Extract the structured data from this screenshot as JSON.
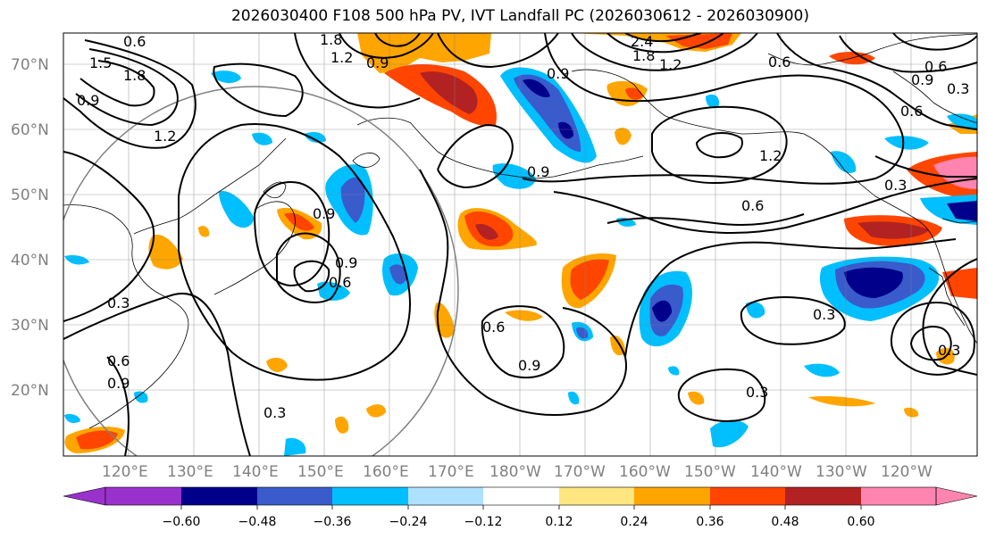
{
  "title": "2026030400 F108 500 hPa PV, IVT Landfall PC (2026030612 - 2026030900)",
  "map": {
    "lat_labels": [
      "70°N",
      "60°N",
      "50°N",
      "40°N",
      "30°N",
      "20°N"
    ],
    "lon_labels": [
      "120°E",
      "130°E",
      "140°E",
      "150°E",
      "160°E",
      "170°E",
      "180°W",
      "170°W",
      "160°W",
      "150°W",
      "140°W",
      "130°W",
      "120°W"
    ],
    "contour_labels": [
      "0.6",
      "1.5",
      "1.8",
      "0.9",
      "1.2",
      "1.8",
      "1.2",
      "0.9",
      "2.4",
      "1.8",
      "1.2",
      "0.6",
      "0.9",
      "0.6",
      "0.3",
      "0.3",
      "0.6",
      "0.9",
      "0.9",
      "0.9",
      "0.6",
      "0.6",
      "0.9",
      "0.3",
      "0.3",
      "0.6",
      "0.9",
      "0.3",
      "0.3",
      "1.2",
      "0.9",
      "0.6",
      "0.3"
    ],
    "colors": {
      "c_neg_060": "#9932cc",
      "c_neg_048": "#00008b",
      "c_neg_036": "#3a5bcc",
      "c_neg_024": "#00bfff",
      "c_neg_012": "#ade1ff",
      "c_zero": "#ffffff",
      "c_pos_012": "#ffe680",
      "c_pos_024": "#ffa500",
      "c_pos_036": "#ff4500",
      "c_pos_048": "#b22222",
      "c_pos_060": "#ff85b0"
    }
  },
  "colorbar": {
    "ticks": [
      "−0.60",
      "−0.48",
      "−0.36",
      "−0.24",
      "−0.12",
      "0.12",
      "0.24",
      "0.36",
      "0.48",
      "0.60"
    ],
    "colors": [
      "#9932cc",
      "#00008b",
      "#3a5bcc",
      "#00bfff",
      "#ade1ff",
      "#ffffff",
      "#ffe680",
      "#ffa500",
      "#ff4500",
      "#b22222",
      "#ff85b0",
      "#ff85b0"
    ]
  }
}
